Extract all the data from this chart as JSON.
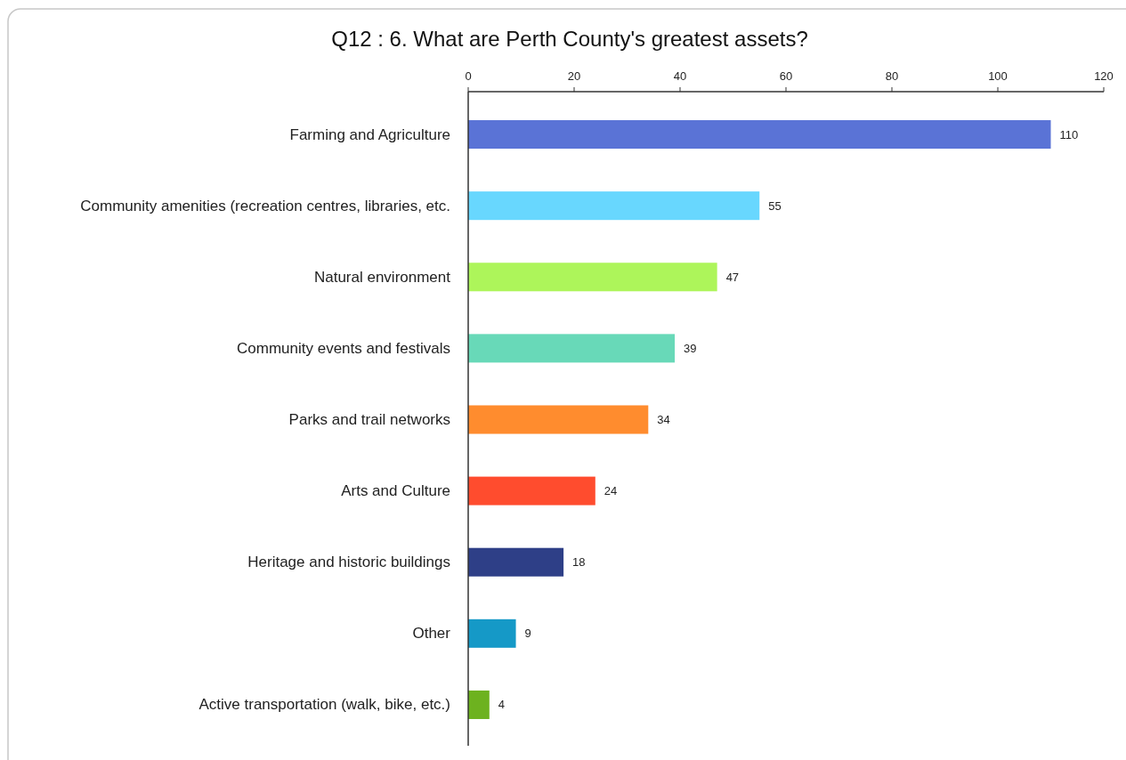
{
  "chart_data": {
    "type": "bar",
    "orientation": "horizontal",
    "title": "Q12 : 6. What are Perth County's greatest assets?",
    "categories": [
      "Farming and Agriculture",
      "Community amenities (recreation centres, libraries, etc.",
      "Natural environment",
      "Community events and festivals",
      "Parks and trail networks",
      "Arts and Culture",
      "Heritage and historic buildings",
      "Other",
      "Active transportation (walk, bike, etc.)"
    ],
    "values": [
      110,
      55,
      47,
      39,
      34,
      24,
      18,
      9,
      4
    ],
    "colors": [
      "#5a73d6",
      "#68d7fe",
      "#adf55a",
      "#68d9b8",
      "#ff8c2e",
      "#ff4c2e",
      "#2e3f87",
      "#1599c7",
      "#6db21f"
    ],
    "xlim": [
      0,
      120
    ],
    "xticks": [
      0,
      20,
      40,
      60,
      80,
      100,
      120
    ],
    "data_labels": true,
    "grid": false
  }
}
